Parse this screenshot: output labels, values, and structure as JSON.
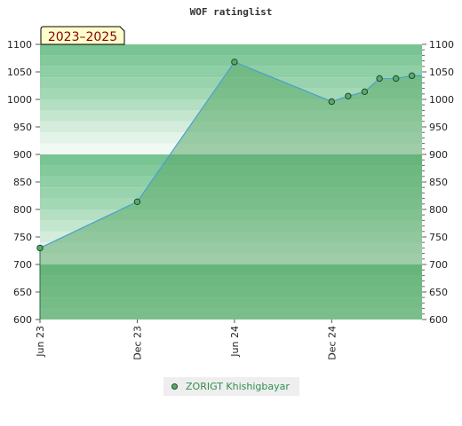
{
  "chart_data": {
    "type": "area",
    "title": "WOF ratinglist",
    "period_badge": "2023–2025",
    "ylim": [
      600,
      1100
    ],
    "yticks": [
      600,
      650,
      700,
      750,
      800,
      850,
      900,
      950,
      1000,
      1050,
      1100
    ],
    "xlim": [
      "2023-06-01",
      "2025-05-20"
    ],
    "xticks": [
      {
        "date": "2023-06-01",
        "label": "Jun 23"
      },
      {
        "date": "2023-12-01",
        "label": "Dec 23"
      },
      {
        "date": "2024-06-01",
        "label": "Jun 24"
      },
      {
        "date": "2024-12-01",
        "label": "Dec 24"
      }
    ],
    "series": [
      {
        "name": "ZORIGT Khishigbayar",
        "points": [
          {
            "x": "2023-06-01",
            "y": 730
          },
          {
            "x": "2023-12-01",
            "y": 814
          },
          {
            "x": "2024-06-01",
            "y": 1068
          },
          {
            "x": "2024-12-01",
            "y": 996
          },
          {
            "x": "2025-01-01",
            "y": 1006
          },
          {
            "x": "2025-02-01",
            "y": 1014
          },
          {
            "x": "2025-03-01",
            "y": 1038
          },
          {
            "x": "2025-04-01",
            "y": 1038
          },
          {
            "x": "2025-05-01",
            "y": 1043
          }
        ]
      }
    ],
    "colors": {
      "area": "#5aaa6a",
      "line": "#4a9fd0",
      "marker": "#5aaa6a"
    },
    "legend_position": "bottom",
    "grid": true
  }
}
